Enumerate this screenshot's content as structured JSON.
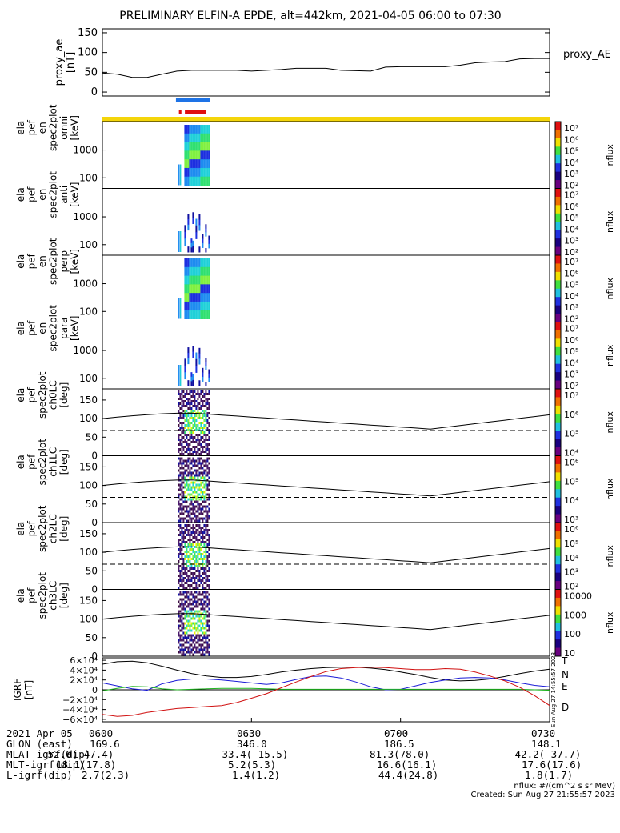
{
  "title": "PRELIMINARY ELFIN-A EPDE, alt=442km, 2021-04-05 06:00 to 07:30",
  "colors": {
    "ae_line": "#000000",
    "bar_blue": "#1e73e6",
    "bar_red": "#e01010",
    "bar_yellow": "#f4d50a",
    "grf_T": "#000000",
    "grf_N": "#1b1bd6",
    "grf_E": "#1fb51f",
    "grf_D": "#d01010"
  },
  "chart_data": [
    {
      "type": "line",
      "panel": "proxy_ae",
      "ylabel_lines": [
        "proxy_ae",
        "[nT]"
      ],
      "legend": "proxy_AE",
      "ylim": [
        -10,
        160
      ],
      "yticks": [
        "0",
        "50",
        "100",
        "150"
      ],
      "x_minutes": [
        0,
        3,
        6,
        9,
        12,
        15,
        18,
        21,
        24,
        27,
        30,
        33,
        36,
        39,
        42,
        45,
        48,
        51,
        54,
        57,
        60,
        63,
        66,
        69,
        72,
        75,
        78,
        81,
        84,
        87,
        90
      ],
      "values": [
        48,
        45,
        37,
        37,
        45,
        53,
        55,
        55,
        55,
        55,
        53,
        55,
        57,
        60,
        60,
        60,
        55,
        54,
        53,
        63,
        64,
        64,
        64,
        64,
        68,
        74,
        76,
        77,
        84,
        85,
        85
      ]
    },
    {
      "type": "heatmap",
      "panel": "omni",
      "ylabel_lines": [
        "ela",
        "pef",
        "en",
        "spec2plot",
        "omni",
        "[keV]"
      ],
      "yticks": [
        "100",
        "1000"
      ],
      "cbar_ticks": [
        "10⁷",
        "10⁶",
        "10⁵",
        "10⁴",
        "10³",
        "10²"
      ],
      "cbar_label": "nflux"
    },
    {
      "type": "heatmap",
      "panel": "anti",
      "ylabel_lines": [
        "ela",
        "pef",
        "en",
        "spec2plot",
        "anti",
        "[keV]"
      ],
      "yticks": [
        "100",
        "1000"
      ],
      "cbar_ticks": [
        "10⁷",
        "10⁶",
        "10⁵",
        "10⁴",
        "10³",
        "10²"
      ],
      "cbar_label": "nflux"
    },
    {
      "type": "heatmap",
      "panel": "perp",
      "ylabel_lines": [
        "ela",
        "pef",
        "en",
        "spec2plot",
        "perp",
        "[keV]"
      ],
      "yticks": [
        "100",
        "1000"
      ],
      "cbar_ticks": [
        "10⁷",
        "10⁶",
        "10⁵",
        "10⁴",
        "10³",
        "10²"
      ],
      "cbar_label": "nflux"
    },
    {
      "type": "heatmap",
      "panel": "para",
      "ylabel_lines": [
        "ela",
        "pef",
        "en",
        "spec2plot",
        "para",
        "[keV]"
      ],
      "yticks": [
        "100",
        "1000"
      ],
      "cbar_ticks": [
        "10⁷",
        "10⁶",
        "10⁵",
        "10⁴",
        "10³",
        "10²"
      ],
      "cbar_label": "nflux"
    },
    {
      "type": "heatmap",
      "panel": "ch0LC",
      "ylabel_lines": [
        "ela",
        "pef",
        "spec2plot",
        "ch0LC",
        "[deg]"
      ],
      "ylim": [
        0,
        180
      ],
      "yticks": [
        "0",
        "50",
        "100",
        "150"
      ],
      "cbar_ticks": [
        "10⁷",
        "10⁶",
        "10⁵",
        "10⁴"
      ],
      "cbar_label": "nflux"
    },
    {
      "type": "heatmap",
      "panel": "ch1LC",
      "ylabel_lines": [
        "ela",
        "pef",
        "spec2plot",
        "ch1LC",
        "[deg]"
      ],
      "ylim": [
        0,
        180
      ],
      "yticks": [
        "0",
        "50",
        "100",
        "150"
      ],
      "cbar_ticks": [
        "10⁶",
        "10⁵",
        "10⁴",
        "10³"
      ],
      "cbar_label": "nflux"
    },
    {
      "type": "heatmap",
      "panel": "ch2LC",
      "ylabel_lines": [
        "ela",
        "pef",
        "spec2plot",
        "ch2LC",
        "[deg]"
      ],
      "ylim": [
        0,
        180
      ],
      "yticks": [
        "0",
        "50",
        "100",
        "150"
      ],
      "cbar_ticks": [
        "10⁶",
        "10⁵",
        "10⁴",
        "10³",
        "10²"
      ],
      "cbar_label": "nflux"
    },
    {
      "type": "heatmap",
      "panel": "ch3LC",
      "ylabel_lines": [
        "ela",
        "pef",
        "spec2plot",
        "ch3LC",
        "[deg]"
      ],
      "ylim": [
        0,
        180
      ],
      "yticks": [
        "0",
        "50",
        "100",
        "150"
      ],
      "cbar_ticks": [
        "10000",
        "1000",
        "100",
        "10"
      ],
      "cbar_label": "nflux"
    },
    {
      "type": "line",
      "panel": "IGRF",
      "ylabel_lines": [
        "IGRF",
        "[nT]"
      ],
      "ylim": [
        -65000,
        65000
      ],
      "yticks": [
        "6×10⁴",
        "4×10⁴",
        "2×10⁴",
        "0",
        "−2×10⁴",
        "−4×10⁴",
        "−6×10⁴"
      ],
      "ytick_values": [
        60000,
        40000,
        20000,
        0,
        -20000,
        -40000,
        -60000
      ],
      "x_minutes": [
        0,
        3,
        6,
        9,
        12,
        15,
        18,
        21,
        24,
        27,
        30,
        33,
        36,
        39,
        42,
        45,
        48,
        51,
        54,
        57,
        60,
        63,
        66,
        69,
        72,
        75,
        78,
        81,
        84,
        87,
        90
      ],
      "series": [
        {
          "name": "T",
          "values": [
            52000,
            57000,
            58000,
            55000,
            48000,
            40000,
            33000,
            28000,
            25000,
            25000,
            27000,
            31000,
            36000,
            40000,
            43000,
            45000,
            46000,
            46000,
            44000,
            41000,
            36000,
            31000,
            25000,
            20000,
            18000,
            19000,
            22000,
            27000,
            33000,
            38000,
            42000
          ]
        },
        {
          "name": "N",
          "values": [
            14000,
            8000,
            2000,
            -1000,
            12000,
            19000,
            22000,
            22000,
            20000,
            17000,
            14000,
            11000,
            14000,
            21000,
            27000,
            28000,
            24000,
            16000,
            6000,
            0,
            1000,
            8000,
            15000,
            20000,
            24000,
            25000,
            24000,
            20000,
            14000,
            9000,
            6000
          ]
        },
        {
          "name": "E",
          "values": [
            -2000,
            3000,
            7000,
            6000,
            2000,
            0,
            1000,
            2000,
            3000,
            3000,
            3000,
            2000,
            1000,
            1000,
            1000,
            1000,
            1000,
            1000,
            1000,
            1000,
            1000,
            1000,
            1000,
            1000,
            1000,
            1000,
            1000,
            1000,
            1000,
            0,
            -1000
          ]
        },
        {
          "name": "D",
          "values": [
            -50000,
            -54000,
            -52000,
            -46000,
            -42000,
            -38000,
            -36000,
            -34000,
            -32000,
            -26000,
            -17000,
            -8000,
            4000,
            16000,
            27000,
            37000,
            43000,
            45000,
            46000,
            45000,
            43000,
            41000,
            41000,
            43000,
            42000,
            36000,
            28000,
            18000,
            5000,
            -12000,
            -32000
          ]
        }
      ]
    }
  ],
  "xaxis": {
    "row_labels": [
      "2021 Apr 05",
      "GLON (east)",
      "MLAT-igrf(dip)",
      "MLT-igrf(dip)",
      "L-igrf(dip)"
    ],
    "columns": [
      {
        "hhmm": "0600",
        "glon": "169.6",
        "mlat": "-52.0(-47.4)",
        "mlt": "18.1(17.8)",
        "l": "2.7(2.3)"
      },
      {
        "hhmm": "0630",
        "glon": "346.0",
        "mlat": "-33.4(-15.5)",
        "mlt": "5.2(5.3)",
        "l": "1.4(1.2)"
      },
      {
        "hhmm": "0700",
        "glon": "186.5",
        "mlat": "81.3(78.0)",
        "mlt": "16.6(16.1)",
        "l": "44.4(24.8)"
      },
      {
        "hhmm": "0730",
        "glon": "148.1",
        "mlat": "-42.2(-37.7)",
        "mlt": "17.6(17.6)",
        "l": "1.8(1.7)"
      }
    ]
  },
  "footer": {
    "units": "nflux: #/(cm^2 s sr MeV)",
    "created": "Created: Sun Aug 27 21:55:57 2023",
    "side_stamp": "Sun Aug 27 14:55:57 2023"
  }
}
